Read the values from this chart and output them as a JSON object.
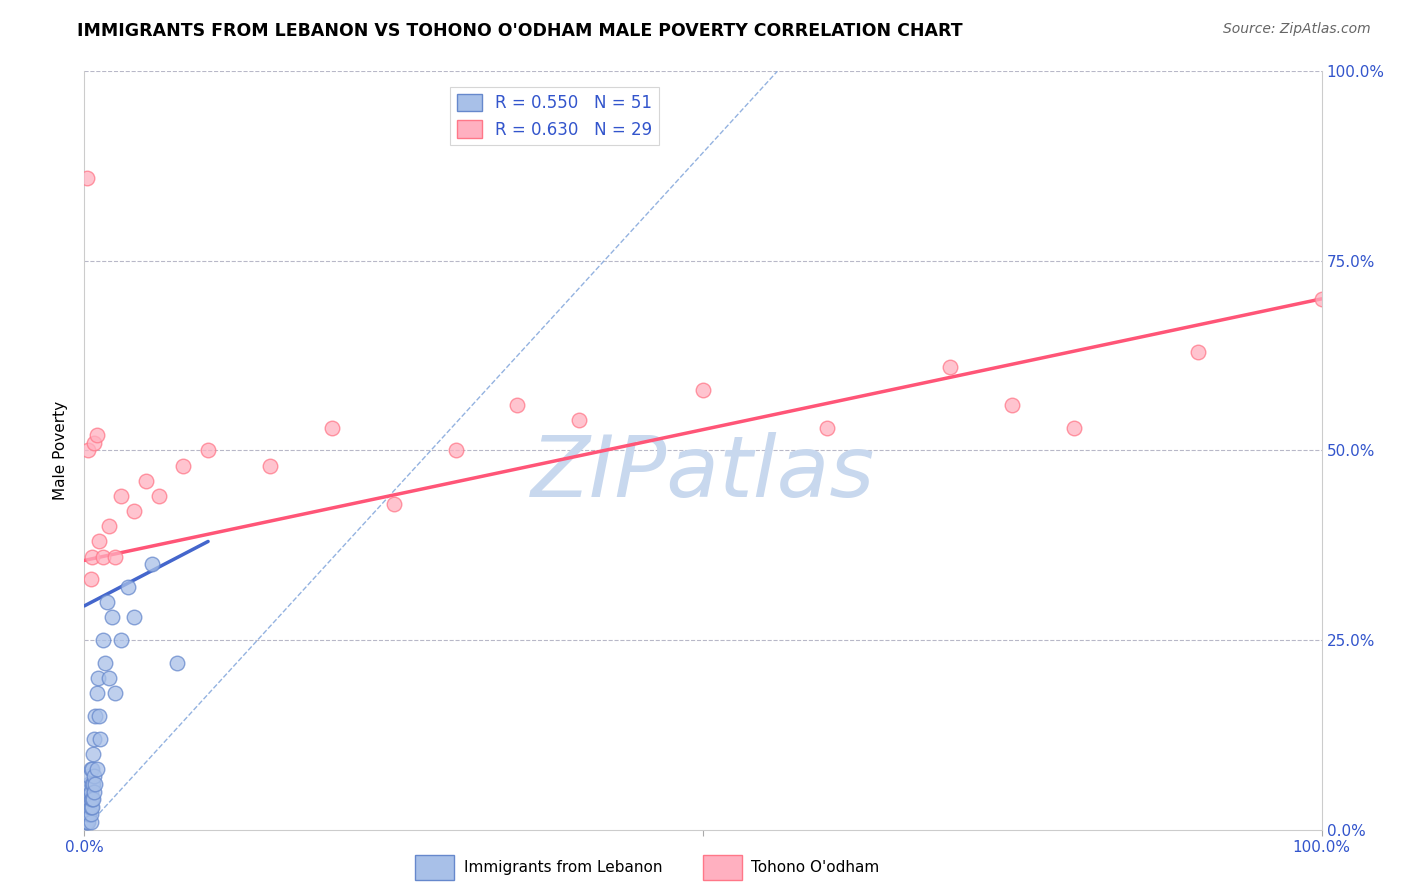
{
  "title": "IMMIGRANTS FROM LEBANON VS TOHONO O'ODHAM MALE POVERTY CORRELATION CHART",
  "source": "Source: ZipAtlas.com",
  "ylabel": "Male Poverty",
  "xlim": [
    0.0,
    1.0
  ],
  "ylim": [
    0.0,
    1.0
  ],
  "grid_color": "#b8b8c8",
  "blue_scatter_face": "#a8c0e8",
  "blue_scatter_edge": "#6688cc",
  "pink_scatter_face": "#ffb0c0",
  "pink_scatter_edge": "#ff7788",
  "blue_line_color": "#4466cc",
  "pink_line_color": "#ff5577",
  "dash_line_color": "#88aadd",
  "tick_label_color": "#3355cc",
  "watermark_color": "#c8d8ee",
  "legend_label1": "R = 0.550   N = 51",
  "legend_label2": "R = 0.630   N = 29",
  "bottom_label1": "Immigrants from Lebanon",
  "bottom_label2": "Tohono O'odham",
  "leb_x": [
    0.001,
    0.001,
    0.001,
    0.002,
    0.002,
    0.002,
    0.002,
    0.002,
    0.003,
    0.003,
    0.003,
    0.003,
    0.004,
    0.004,
    0.004,
    0.004,
    0.004,
    0.005,
    0.005,
    0.005,
    0.005,
    0.005,
    0.005,
    0.006,
    0.006,
    0.006,
    0.006,
    0.007,
    0.007,
    0.007,
    0.008,
    0.008,
    0.008,
    0.009,
    0.009,
    0.01,
    0.01,
    0.011,
    0.012,
    0.013,
    0.015,
    0.017,
    0.018,
    0.02,
    0.022,
    0.025,
    0.03,
    0.035,
    0.04,
    0.055,
    0.075
  ],
  "leb_y": [
    0.01,
    0.02,
    0.03,
    0.01,
    0.02,
    0.03,
    0.04,
    0.05,
    0.01,
    0.02,
    0.03,
    0.05,
    0.02,
    0.03,
    0.04,
    0.06,
    0.07,
    0.01,
    0.02,
    0.03,
    0.04,
    0.05,
    0.08,
    0.03,
    0.04,
    0.06,
    0.08,
    0.04,
    0.06,
    0.1,
    0.05,
    0.07,
    0.12,
    0.06,
    0.15,
    0.08,
    0.18,
    0.2,
    0.15,
    0.12,
    0.25,
    0.22,
    0.3,
    0.2,
    0.28,
    0.18,
    0.25,
    0.32,
    0.28,
    0.35,
    0.22
  ],
  "toh_x": [
    0.002,
    0.003,
    0.005,
    0.006,
    0.008,
    0.01,
    0.012,
    0.015,
    0.02,
    0.025,
    0.03,
    0.04,
    0.05,
    0.06,
    0.08,
    0.1,
    0.15,
    0.2,
    0.25,
    0.3,
    0.35,
    0.4,
    0.5,
    0.6,
    0.7,
    0.75,
    0.8,
    0.9,
    1.0
  ],
  "toh_y": [
    0.86,
    0.5,
    0.33,
    0.36,
    0.51,
    0.52,
    0.38,
    0.36,
    0.4,
    0.36,
    0.44,
    0.42,
    0.46,
    0.44,
    0.48,
    0.5,
    0.48,
    0.53,
    0.43,
    0.5,
    0.56,
    0.54,
    0.58,
    0.53,
    0.61,
    0.56,
    0.53,
    0.63,
    0.7
  ],
  "pink_line_x": [
    0.0,
    1.0
  ],
  "pink_line_y": [
    0.355,
    0.7
  ],
  "blue_line_x": [
    0.0,
    0.1
  ],
  "blue_line_y": [
    0.295,
    0.38
  ],
  "dash_line_x": [
    0.0,
    0.56
  ],
  "dash_line_y": [
    0.0,
    1.0
  ]
}
